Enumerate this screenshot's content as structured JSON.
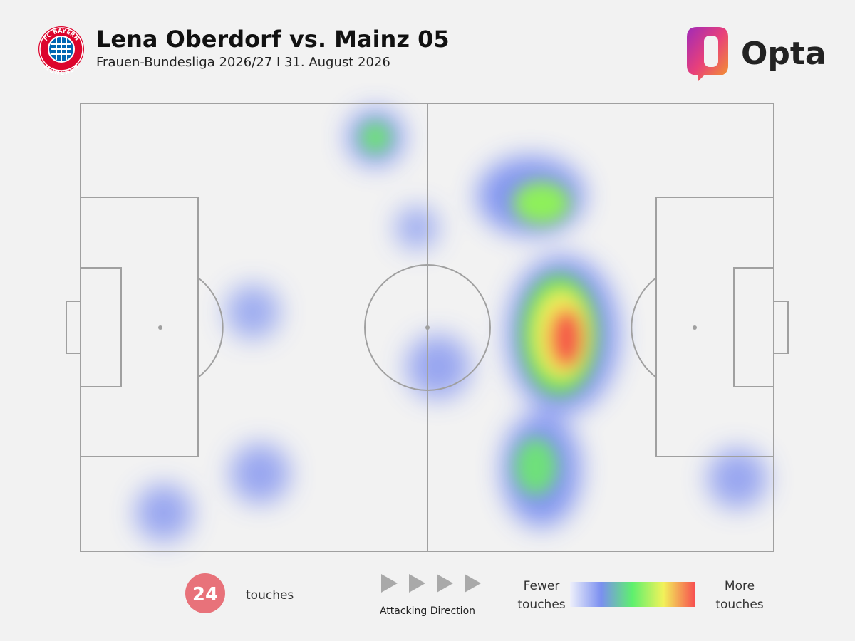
{
  "header": {
    "title": "Lena Oberdorf vs. Mainz 05",
    "subtitle": "Frauen-Bundesliga 2026/27 I 31. August 2026",
    "club_logo": {
      "top": "FC BAYERN",
      "bottom": "MÜNCHEN"
    },
    "brand": "Opta"
  },
  "footer": {
    "count": "24",
    "count_label": "touches",
    "direction_label": "Attacking Direction",
    "legend": {
      "low": [
        "Fewer",
        "touches"
      ],
      "high": [
        "More",
        "touches"
      ]
    }
  }
}
